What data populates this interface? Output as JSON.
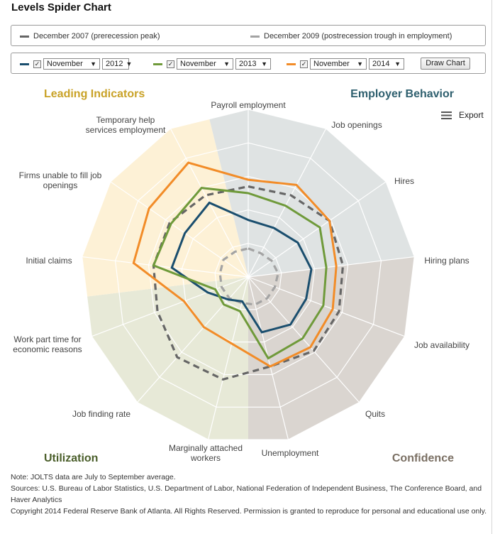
{
  "title": "Levels Spider Chart",
  "legend": {
    "items": [
      {
        "label": "December 2007 (prerecession peak)",
        "color": "#666666"
      },
      {
        "label": "December 2009 (postrecession trough in employment)",
        "color": "#a3a3a3"
      }
    ]
  },
  "controls": {
    "series": [
      {
        "color": "#1a4e6e",
        "checked": "✓",
        "month": "November",
        "year": "2012"
      },
      {
        "color": "#6f9a3a",
        "checked": "✓",
        "month": "November",
        "year": "2013"
      },
      {
        "color": "#f28c28",
        "checked": "✓",
        "month": "November",
        "year": "2014"
      }
    ],
    "draw_button": "Draw Chart"
  },
  "export": {
    "label": "Export",
    "icon": "menu-icon"
  },
  "chart_data": {
    "type": "radar",
    "axes": [
      "Payroll employment",
      "Job openings",
      "Hires",
      "Hiring plans",
      "Job availability",
      "Quits",
      "Unemployment",
      "Marginally attached workers",
      "Job finding rate",
      "Work part time for economic reasons",
      "Initial claims",
      "Firms unable to fill job openings",
      "Temporary help services employment"
    ],
    "quadrants": [
      {
        "label": "Leading Indicators",
        "color": "#c9a227"
      },
      {
        "label": "Employer Behavior",
        "color": "#2e5f6e"
      },
      {
        "label": "Confidence",
        "color": "#7a6f63"
      },
      {
        "label": "Utilization",
        "color": "#4a5e2a"
      }
    ],
    "series": [
      {
        "name": "December 2007 (prerecession peak)",
        "color": "#666666",
        "dash": "dashed",
        "values": [
          0.54,
          0.55,
          0.59,
          0.57,
          0.58,
          0.59,
          0.55,
          0.63,
          0.64,
          0.58,
          0.57,
          0.57,
          0.55
        ]
      },
      {
        "name": "December 2009 (postrecession trough in employment)",
        "color": "#a3a3a3",
        "dash": "dashed",
        "values": [
          0.17,
          0.16,
          0.17,
          0.18,
          0.17,
          0.17,
          0.17,
          0.16,
          0.17,
          0.17,
          0.17,
          0.18,
          0.17
        ]
      },
      {
        "name": "November 2012",
        "color": "#1a4e6e",
        "dash": "solid",
        "values": [
          0.34,
          0.33,
          0.36,
          0.38,
          0.37,
          0.38,
          0.34,
          0.15,
          0.18,
          0.26,
          0.46,
          0.46,
          0.5
        ]
      },
      {
        "name": "November 2013",
        "color": "#6f9a3a",
        "dash": "solid",
        "values": [
          0.5,
          0.48,
          0.52,
          0.47,
          0.48,
          0.49,
          0.5,
          0.21,
          0.22,
          0.21,
          0.57,
          0.56,
          0.6
        ]
      },
      {
        "name": "November 2014",
        "color": "#f28c28",
        "dash": "solid",
        "values": [
          0.58,
          0.62,
          0.59,
          0.53,
          0.54,
          0.56,
          0.55,
          0.41,
          0.4,
          0.41,
          0.69,
          0.72,
          0.77
        ]
      }
    ]
  },
  "notes": [
    "Note: JOLTS data are July to September average.",
    "Sources: U.S. Bureau of Labor Statistics, U.S. Department of Labor, National Federation of Independent Business, The Conference Board, and Haver Analytics",
    "Copyright 2014 Federal Reserve Bank of Atlanta. All Rights Reserved. Permission is granted to reproduce for personal and educational use only."
  ]
}
